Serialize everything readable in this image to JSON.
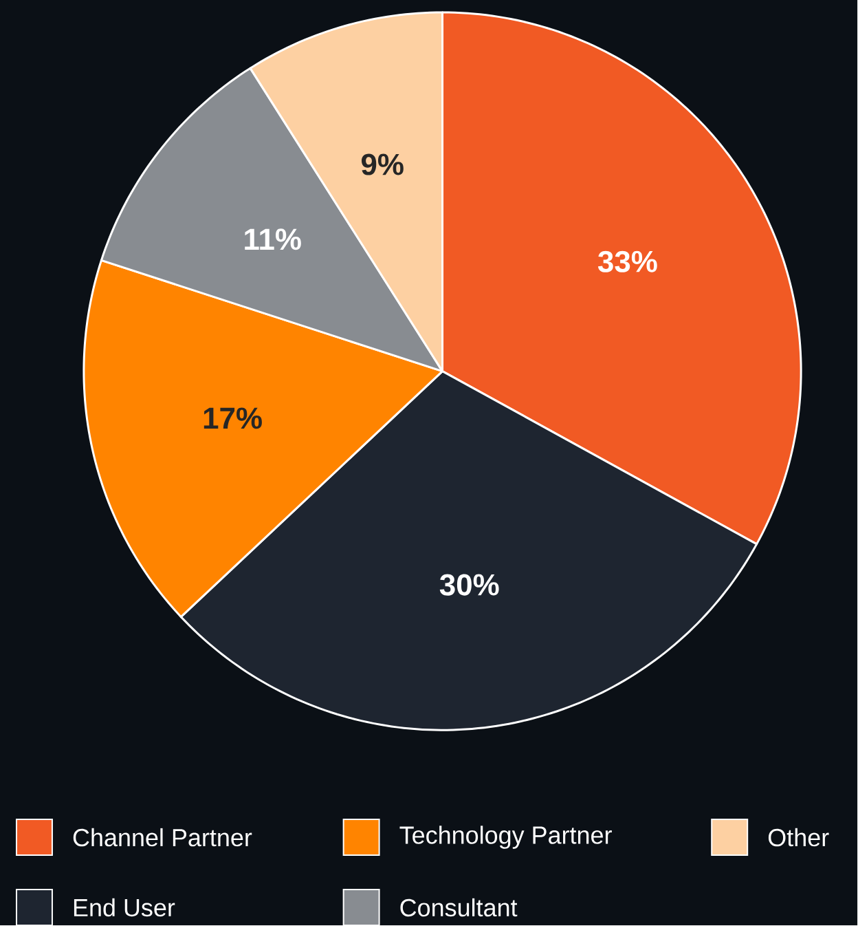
{
  "chart_data": {
    "type": "pie",
    "categories": [
      "Channel Partner",
      "End User",
      "Technology Partner",
      "Consultant",
      "Other"
    ],
    "values": [
      33,
      30,
      17,
      11,
      9
    ],
    "value_labels": [
      "33%",
      "30%",
      "17%",
      "11%",
      "9%"
    ],
    "colors": [
      "#f15a24",
      "#1e2530",
      "#ff8400",
      "#888c91",
      "#fdd0a2"
    ],
    "legend": "bottom"
  }
}
